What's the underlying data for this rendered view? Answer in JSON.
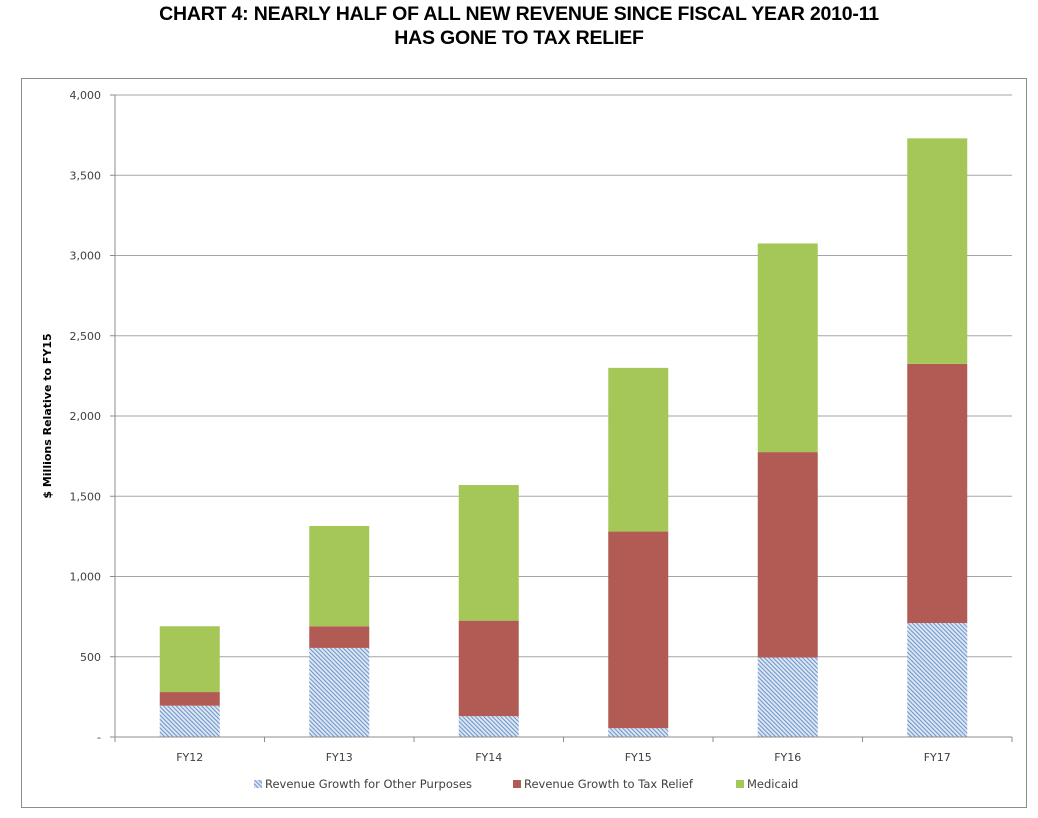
{
  "chart_data": {
    "type": "bar",
    "stacked": true,
    "title": "CHART 4:  NEARLY HALF OF ALL NEW REVENUE SINCE FISCAL YEAR 2010-11",
    "subtitle": "HAS GONE TO TAX RELIEF",
    "xlabel": "",
    "ylabel": "$ Millions Relative to FY15",
    "ylim": [
      0,
      4000
    ],
    "yticks": [
      0,
      500,
      1000,
      1500,
      2000,
      2500,
      3000,
      3500,
      4000
    ],
    "ytick_labels": [
      "-",
      "500",
      "1,000",
      "1,500",
      "2,000",
      "2,500",
      "3,000",
      "3,500",
      "4,000"
    ],
    "grid": true,
    "legend_position": "bottom",
    "categories": [
      "FY12",
      "FY13",
      "FY14",
      "FY15",
      "FY16",
      "FY17"
    ],
    "series": [
      {
        "name": "Revenue Growth for Other Purposes",
        "color": "#4f81bd",
        "pattern": "diagonal-hatch",
        "values": [
          195,
          555,
          130,
          55,
          495,
          710
        ]
      },
      {
        "name": "Revenue Growth to Tax Relief",
        "color": "#b15b54",
        "pattern": "solid",
        "values": [
          85,
          135,
          595,
          1225,
          1280,
          1615
        ]
      },
      {
        "name": "Medicaid",
        "color": "#a5c757",
        "pattern": "solid",
        "values": [
          410,
          625,
          845,
          1020,
          1300,
          1405
        ]
      }
    ]
  }
}
